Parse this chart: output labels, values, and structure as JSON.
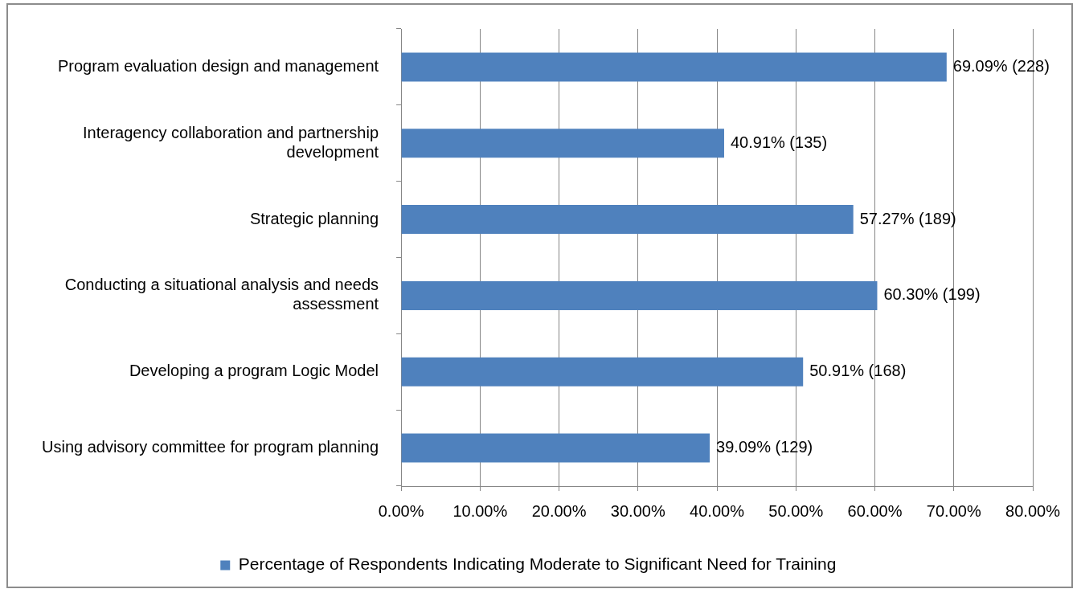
{
  "chart_data": {
    "type": "bar",
    "orientation": "horizontal",
    "categories": [
      "Program evaluation design and management",
      "Interagency collaboration and partnership development",
      "Strategic planning",
      "Conducting a situational analysis and needs assessment",
      "Developing a program Logic Model",
      "Using advisory committee for program planning"
    ],
    "series": [
      {
        "name": "Percentage of Respondents Indicating Moderate to Significant Need for Training",
        "color": "#4f81bd",
        "values": [
          69.09,
          40.91,
          57.27,
          60.3,
          50.91,
          39.09
        ],
        "value_labels": [
          "69.09% (228)",
          "40.91% (135)",
          "57.27% (189)",
          "60.30% (199)",
          "50.91% (168)",
          "39.09% (129)"
        ]
      }
    ],
    "xlim": [
      0,
      80
    ],
    "xticks": [
      {
        "value": 0,
        "label": "0.00%"
      },
      {
        "value": 10,
        "label": "10.00%"
      },
      {
        "value": 20,
        "label": "20.00%"
      },
      {
        "value": 30,
        "label": "30.00%"
      },
      {
        "value": 40,
        "label": "40.00%"
      },
      {
        "value": 50,
        "label": "50.00%"
      },
      {
        "value": 60,
        "label": "60.00%"
      },
      {
        "value": 70,
        "label": "70.00%"
      },
      {
        "value": 80,
        "label": "80.00%"
      }
    ],
    "grid": "x",
    "legend": "bottom"
  }
}
